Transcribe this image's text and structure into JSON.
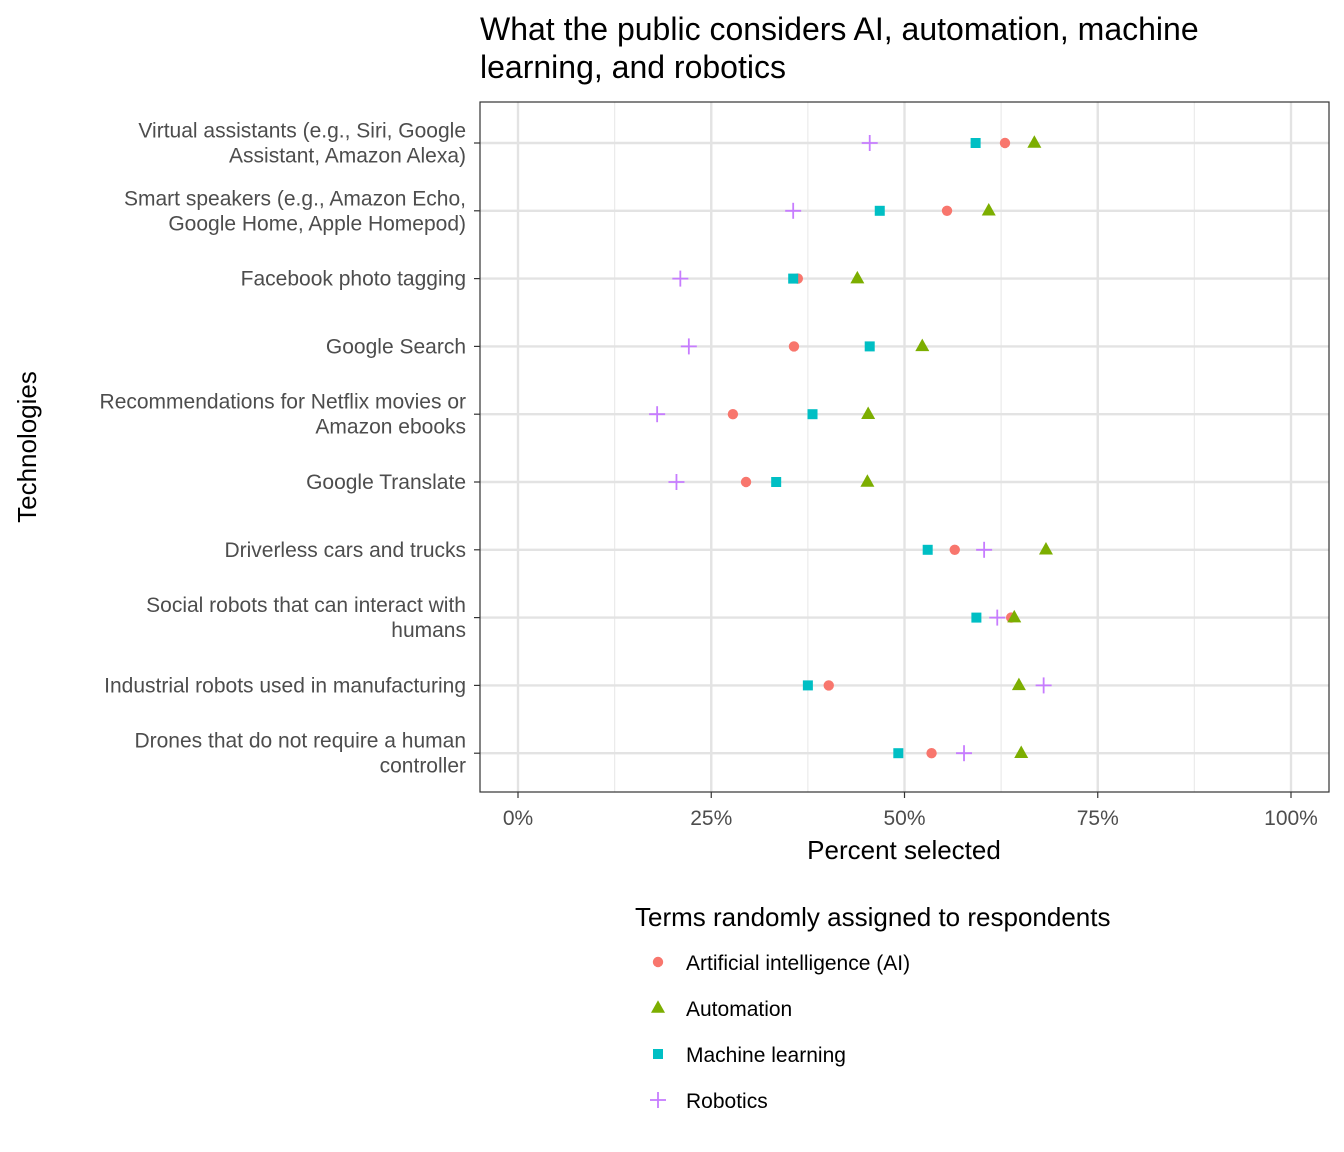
{
  "chart_data": {
    "type": "scatter",
    "title": "What the public considers AI, automation, machine learning, and robotics",
    "title_lines": [
      "What the public considers AI, automation, machine",
      "learning, and robotics"
    ],
    "xlabel": "Percent selected",
    "ylabel": "Technologies",
    "xlim": [
      0,
      1
    ],
    "x_ticks": [
      0,
      0.25,
      0.5,
      0.75,
      1
    ],
    "x_tick_labels": [
      "0%",
      "25%",
      "50%",
      "75%",
      "100%"
    ],
    "grid": true,
    "categories": [
      [
        "Virtual assistants (e.g., Siri, Google",
        "Assistant, Amazon Alexa)"
      ],
      [
        "Smart speakers (e.g., Amazon Echo,",
        "Google Home, Apple Homepod)"
      ],
      [
        "Facebook photo tagging"
      ],
      [
        "Google Search"
      ],
      [
        "Recommendations for Netflix movies or",
        "Amazon ebooks"
      ],
      [
        "Google Translate"
      ],
      [
        "Driverless cars and trucks"
      ],
      [
        "Social robots that can interact with",
        "humans"
      ],
      [
        "Industrial robots used in manufacturing"
      ],
      [
        "Drones that do not require a human",
        "controller"
      ]
    ],
    "series": [
      {
        "name": "Artificial intelligence (AI)",
        "shape": "circle",
        "color": "#F8766D",
        "values": [
          0.63,
          0.555,
          0.362,
          0.357,
          0.278,
          0.295,
          0.565,
          0.638,
          0.402,
          0.535
        ]
      },
      {
        "name": "Automation",
        "shape": "triangle",
        "color": "#7CAE00",
        "values": [
          0.668,
          0.609,
          0.439,
          0.523,
          0.453,
          0.452,
          0.683,
          0.642,
          0.648,
          0.651
        ]
      },
      {
        "name": "Machine learning",
        "shape": "square",
        "color": "#00BFC4",
        "values": [
          0.592,
          0.468,
          0.356,
          0.455,
          0.381,
          0.334,
          0.53,
          0.593,
          0.375,
          0.492
        ]
      },
      {
        "name": "Robotics",
        "shape": "plus",
        "color": "#C77CFF",
        "values": [
          0.455,
          0.356,
          0.21,
          0.221,
          0.18,
          0.205,
          0.603,
          0.62,
          0.68,
          0.577
        ]
      }
    ],
    "legend": {
      "title": "Terms randomly assigned to respondents",
      "position": "bottom"
    }
  }
}
